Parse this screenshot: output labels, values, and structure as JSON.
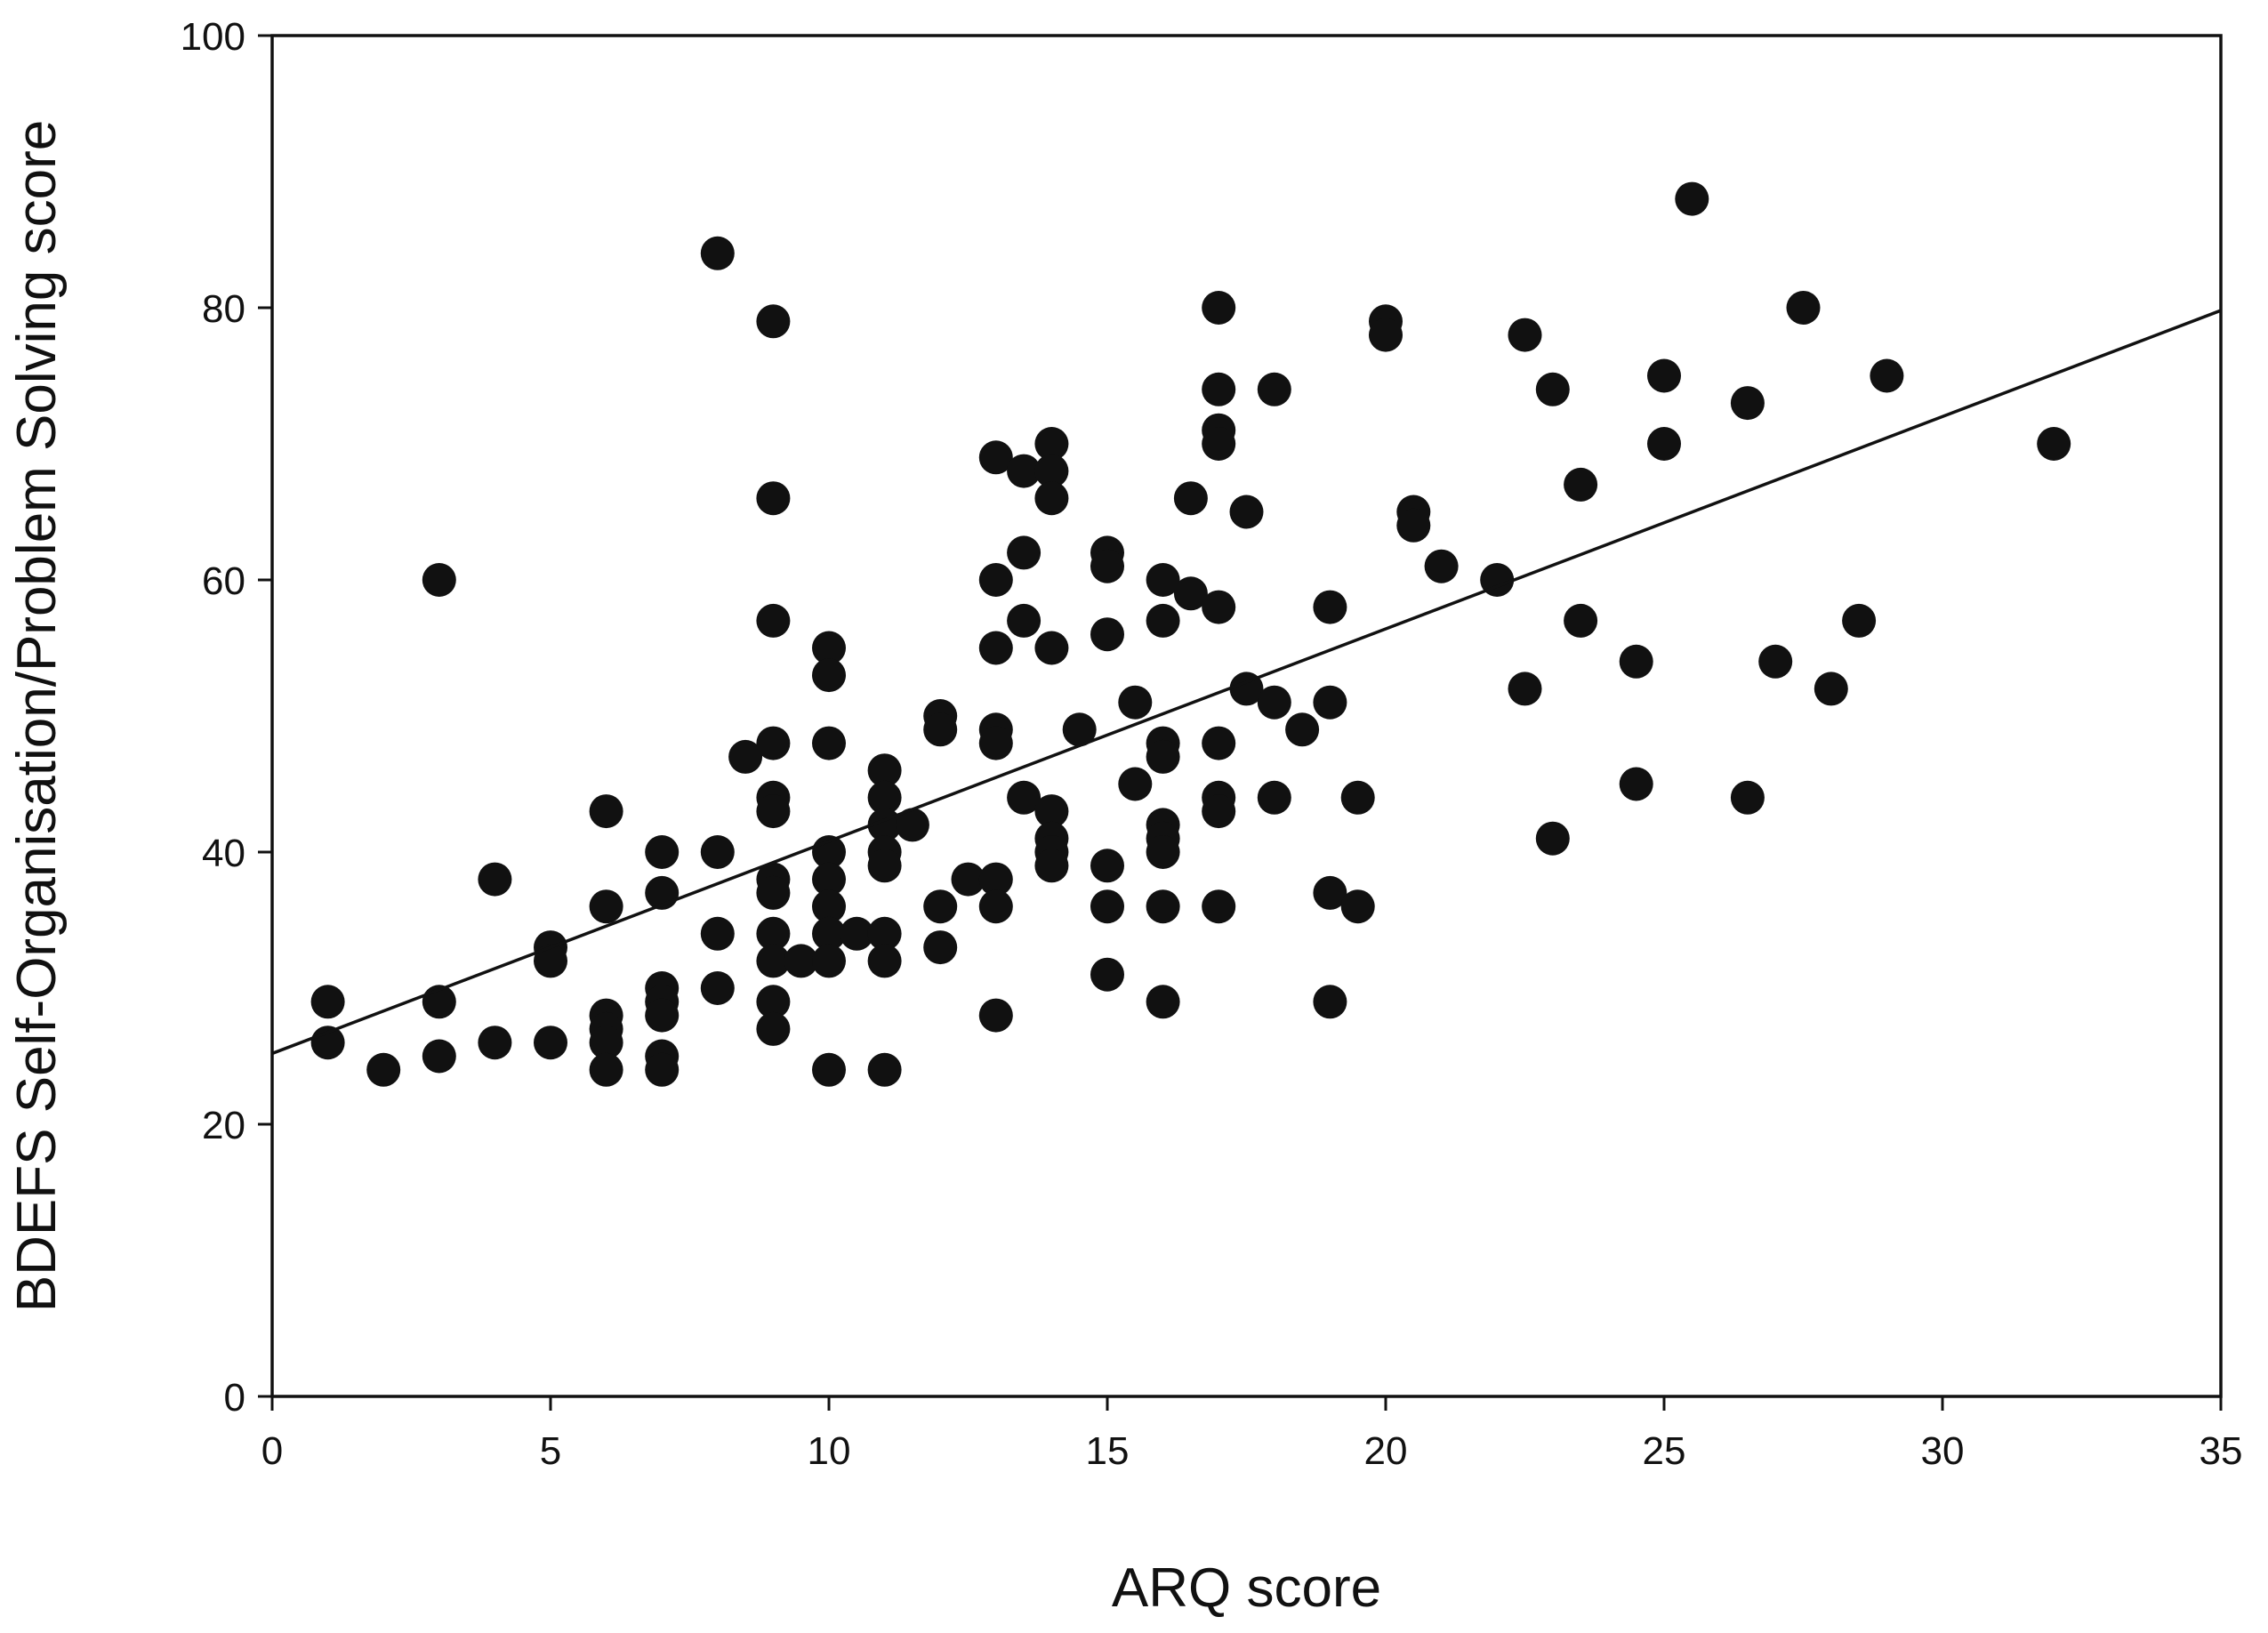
{
  "chart_data": {
    "type": "scatter",
    "title": "",
    "xlabel": "ARQ score",
    "ylabel": "BDEFS Self-Organisation/Problem Solving score",
    "xlim": [
      0,
      35
    ],
    "ylim": [
      0,
      100
    ],
    "x_ticks": [
      "0",
      "5",
      "10",
      "15",
      "20",
      "25",
      "30",
      "35"
    ],
    "y_ticks": [
      "0",
      "20",
      "40",
      "60",
      "80",
      "100"
    ],
    "grid": false,
    "legend": "none",
    "marker_color": "#111111",
    "regression_line": {
      "intercept": 25.2,
      "slope": 1.56,
      "x_range": [
        0,
        35
      ]
    },
    "points": [
      [
        1,
        29
      ],
      [
        1,
        26
      ],
      [
        2,
        24
      ],
      [
        3,
        60
      ],
      [
        3,
        29
      ],
      [
        3,
        25
      ],
      [
        4,
        38
      ],
      [
        4,
        26
      ],
      [
        5,
        33
      ],
      [
        5,
        32
      ],
      [
        5,
        26
      ],
      [
        6,
        43
      ],
      [
        6,
        36
      ],
      [
        6,
        28
      ],
      [
        6,
        27
      ],
      [
        6,
        26
      ],
      [
        6,
        24
      ],
      [
        7,
        40
      ],
      [
        7,
        37
      ],
      [
        7,
        30
      ],
      [
        7,
        29
      ],
      [
        7,
        28
      ],
      [
        7,
        25
      ],
      [
        7,
        24
      ],
      [
        8,
        84
      ],
      [
        8,
        40
      ],
      [
        8,
        34
      ],
      [
        8,
        30
      ],
      [
        8.5,
        47
      ],
      [
        9,
        79
      ],
      [
        9,
        66
      ],
      [
        9,
        57
      ],
      [
        9,
        48
      ],
      [
        9,
        44
      ],
      [
        9,
        43
      ],
      [
        9,
        38
      ],
      [
        9,
        37
      ],
      [
        9,
        34
      ],
      [
        9,
        32
      ],
      [
        9,
        29
      ],
      [
        9,
        27
      ],
      [
        9.5,
        32
      ],
      [
        10,
        55
      ],
      [
        10,
        53
      ],
      [
        10,
        48
      ],
      [
        10,
        40
      ],
      [
        10,
        38
      ],
      [
        10,
        36
      ],
      [
        10,
        34
      ],
      [
        10,
        32
      ],
      [
        10,
        24
      ],
      [
        10.5,
        34
      ],
      [
        11,
        46
      ],
      [
        11,
        44
      ],
      [
        11,
        42
      ],
      [
        11,
        40
      ],
      [
        11,
        39
      ],
      [
        11,
        34
      ],
      [
        11,
        32
      ],
      [
        11,
        24
      ],
      [
        11.5,
        42
      ],
      [
        12,
        50
      ],
      [
        12,
        49
      ],
      [
        12,
        36
      ],
      [
        12,
        33
      ],
      [
        12.5,
        38
      ],
      [
        13,
        69
      ],
      [
        13,
        60
      ],
      [
        13,
        55
      ],
      [
        13,
        49
      ],
      [
        13,
        48
      ],
      [
        13,
        38
      ],
      [
        13,
        36
      ],
      [
        13,
        28
      ],
      [
        13.5,
        68
      ],
      [
        13.5,
        62
      ],
      [
        13.5,
        57
      ],
      [
        13.5,
        44
      ],
      [
        14,
        70
      ],
      [
        14,
        68
      ],
      [
        14,
        66
      ],
      [
        14,
        55
      ],
      [
        14,
        43
      ],
      [
        14,
        41
      ],
      [
        14,
        40
      ],
      [
        14,
        39
      ],
      [
        14.5,
        49
      ],
      [
        15,
        62
      ],
      [
        15,
        61
      ],
      [
        15,
        56
      ],
      [
        15,
        39
      ],
      [
        15,
        36
      ],
      [
        15,
        31
      ],
      [
        15.5,
        51
      ],
      [
        15.5,
        45
      ],
      [
        16,
        60
      ],
      [
        16,
        57
      ],
      [
        16,
        48
      ],
      [
        16,
        47
      ],
      [
        16,
        42
      ],
      [
        16,
        41
      ],
      [
        16,
        40
      ],
      [
        16,
        36
      ],
      [
        16,
        29
      ],
      [
        16.5,
        66
      ],
      [
        16.5,
        59
      ],
      [
        17,
        80
      ],
      [
        17,
        74
      ],
      [
        17,
        71
      ],
      [
        17,
        70
      ],
      [
        17,
        58
      ],
      [
        17,
        48
      ],
      [
        17,
        44
      ],
      [
        17,
        43
      ],
      [
        17,
        36
      ],
      [
        17.5,
        65
      ],
      [
        17.5,
        52
      ],
      [
        18,
        74
      ],
      [
        18,
        51
      ],
      [
        18,
        44
      ],
      [
        18.5,
        49
      ],
      [
        19,
        58
      ],
      [
        19,
        51
      ],
      [
        19,
        37
      ],
      [
        19,
        29
      ],
      [
        19.5,
        44
      ],
      [
        19.5,
        36
      ],
      [
        20,
        79
      ],
      [
        20,
        78
      ],
      [
        20.5,
        65
      ],
      [
        20.5,
        64
      ],
      [
        21,
        61
      ],
      [
        22,
        60
      ],
      [
        22.5,
        78
      ],
      [
        22.5,
        52
      ],
      [
        23,
        74
      ],
      [
        23,
        41
      ],
      [
        23.5,
        67
      ],
      [
        23.5,
        57
      ],
      [
        24.5,
        54
      ],
      [
        24.5,
        45
      ],
      [
        25,
        75
      ],
      [
        25,
        70
      ],
      [
        25.5,
        88
      ],
      [
        26.5,
        73
      ],
      [
        26.5,
        44
      ],
      [
        27,
        54
      ],
      [
        27.5,
        80
      ],
      [
        28,
        52
      ],
      [
        28.5,
        57
      ],
      [
        29,
        75
      ],
      [
        32,
        70
      ]
    ]
  }
}
